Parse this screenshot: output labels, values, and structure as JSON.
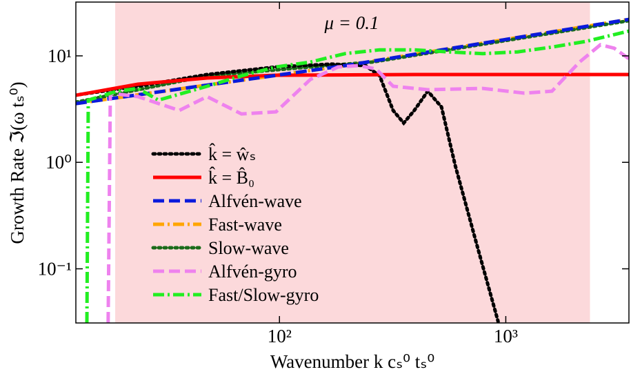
{
  "chart_data": {
    "type": "line",
    "xlabel": "Wavenumber  k cₛ⁰ tₛ⁰",
    "ylabel": "Growth Rate  ℑ(ω tₛ⁰)",
    "annotation": "μ = 0.1",
    "annotation_color": "#e8202a",
    "shaded_region": [
      18.8,
      2355
    ],
    "shaded_color": "#fbd2d5",
    "xscale": "log",
    "yscale": "log",
    "xlim": [
      12.6,
      3500
    ],
    "ylim": [
      0.031,
      32
    ],
    "xticks": [
      {
        "value": 100,
        "label": "10²"
      },
      {
        "value": 1000,
        "label": "10³"
      }
    ],
    "yticks": [
      {
        "value": 0.1,
        "label": "10⁻¹"
      },
      {
        "value": 1,
        "label": "10⁰"
      },
      {
        "value": 10,
        "label": "10¹"
      }
    ],
    "legend": "lower left",
    "series": [
      {
        "name": "k̂ = ŵₛ",
        "color": "#000000",
        "linestyle": "dotted",
        "x": [
          13.1,
          23.7,
          47.9,
          96.5,
          169,
          240,
          277,
          318,
          354,
          394,
          452,
          520,
          598,
          739,
          925
        ],
        "values": [
          4.33,
          5.18,
          6.68,
          7.87,
          8.36,
          8.1,
          6.49,
          3.07,
          2.34,
          3.07,
          4.66,
          3.31,
          0.93,
          0.179,
          0.032
        ]
      },
      {
        "name": "k̂ = B̂₀",
        "color": "#ff0000",
        "linestyle": "solid",
        "x": [
          12.6,
          23.7,
          47.9,
          96.5,
          394,
          3500
        ],
        "values": [
          4.27,
          5.42,
          6.2,
          6.58,
          6.68,
          6.68
        ]
      },
      {
        "name": "Alfvén-wave",
        "color": "#0a1adc",
        "linestyle": "dashed",
        "x": [
          12.6,
          195,
          3500
        ],
        "values": [
          3.56,
          8.1,
          22
        ]
      },
      {
        "name": "Fast-wave",
        "color": "#ffa500",
        "linestyle": "dashdot",
        "x": [
          12.6,
          195,
          3500
        ],
        "values": [
          3.56,
          8.1,
          22
        ]
      },
      {
        "name": "Slow-wave",
        "color": "#1a6b1a",
        "linestyle": "dotted",
        "x": [
          12.6,
          47.9,
          137,
          258,
          3500
        ],
        "values": [
          3.67,
          6.49,
          7.87,
          8.75,
          21.4
        ]
      },
      {
        "name": "Alfvén-gyro",
        "color": "#ee82ee",
        "linestyle": "dashed",
        "x": [
          17.5,
          17.9,
          23.7,
          36.1,
          47.9,
          67.9,
          96.5,
          137,
          182,
          224,
          267,
          318,
          452,
          792,
          1208,
          1600,
          2118,
          2617,
          3012,
          3500
        ],
        "values": [
          0.031,
          4.46,
          4.14,
          3.07,
          4.14,
          2.85,
          2.98,
          6.01,
          7.87,
          8.1,
          7.53,
          5.18,
          4.81,
          4.95,
          4.46,
          4.66,
          8.75,
          12.7,
          11.8,
          9.4
        ]
      },
      {
        "name": "Fast/Slow-gyro",
        "color": "#22ee22",
        "linestyle": "dashdot",
        "x": [
          14.1,
          14.3,
          19.2,
          23.7,
          29.2,
          47.9,
          67.9,
          96.5,
          137,
          195,
          277,
          394,
          558,
          792,
          1127,
          1600,
          2275,
          3500
        ],
        "values": [
          0.031,
          3.84,
          4.66,
          4.95,
          3.84,
          5.18,
          6.49,
          7.87,
          8.75,
          10.5,
          11.4,
          11.4,
          10.9,
          10.5,
          10.9,
          12.1,
          13.7,
          17.1
        ]
      }
    ]
  }
}
